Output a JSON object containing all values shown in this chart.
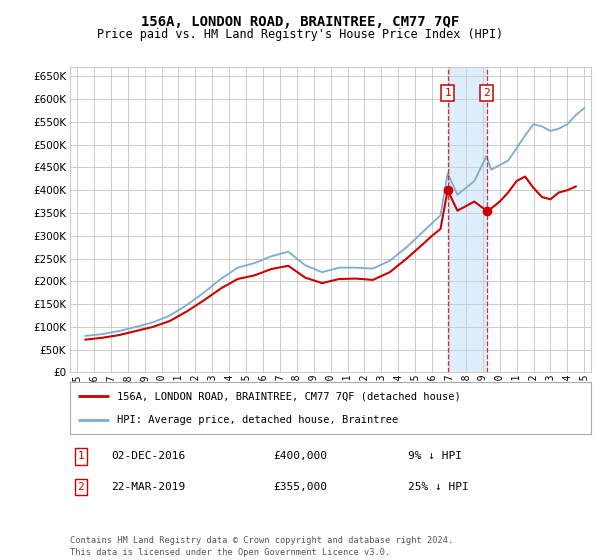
{
  "title": "156A, LONDON ROAD, BRAINTREE, CM77 7QF",
  "subtitle": "Price paid vs. HM Land Registry's House Price Index (HPI)",
  "legend_line1": "156A, LONDON ROAD, BRAINTREE, CM77 7QF (detached house)",
  "legend_line2": "HPI: Average price, detached house, Braintree",
  "transaction1_label": "1",
  "transaction1_date": "02-DEC-2016",
  "transaction1_price": "£400,000",
  "transaction1_hpi": "9% ↓ HPI",
  "transaction1_year": 2016.92,
  "transaction1_value": 400000,
  "transaction2_label": "2",
  "transaction2_date": "22-MAR-2019",
  "transaction2_price": "£355,000",
  "transaction2_hpi": "25% ↓ HPI",
  "transaction2_year": 2019.22,
  "transaction2_value": 355000,
  "footer": "Contains HM Land Registry data © Crown copyright and database right 2024.\nThis data is licensed under the Open Government Licence v3.0.",
  "red_line_color": "#cc0000",
  "blue_line_color": "#7aadcf",
  "bg_color": "#ffffff",
  "grid_color": "#cccccc",
  "highlight_color": "#ddeeff",
  "ylim": [
    0,
    670000
  ],
  "yticks": [
    0,
    50000,
    100000,
    150000,
    200000,
    250000,
    300000,
    350000,
    400000,
    450000,
    500000,
    550000,
    600000,
    650000
  ],
  "hpi_years": [
    1995.5,
    1996.5,
    1997.5,
    1998.5,
    1999.5,
    2000.5,
    2001.5,
    2002.5,
    2003.5,
    2004.5,
    2005.5,
    2006.5,
    2007.5,
    2008.5,
    2009.5,
    2010.5,
    2011.5,
    2012.5,
    2013.5,
    2014.5,
    2015.5,
    2016.5,
    2016.92,
    2017.5,
    2018.5,
    2019.22,
    2019.5,
    2020.5,
    2021.5,
    2022.0,
    2022.5,
    2023.0,
    2023.5,
    2024.0,
    2024.5,
    2025.0
  ],
  "hpi_values": [
    80000,
    84000,
    91000,
    100000,
    110000,
    125000,
    148000,
    175000,
    205000,
    230000,
    240000,
    255000,
    265000,
    235000,
    220000,
    230000,
    230000,
    228000,
    245000,
    275000,
    310000,
    345000,
    437000,
    390000,
    420000,
    475000,
    445000,
    465000,
    520000,
    545000,
    540000,
    530000,
    535000,
    545000,
    565000,
    580000
  ],
  "red_years": [
    1995.5,
    1996.5,
    1997.5,
    1998.5,
    1999.5,
    2000.5,
    2001.5,
    2002.5,
    2003.5,
    2004.5,
    2005.5,
    2006.5,
    2007.5,
    2008.5,
    2009.5,
    2010.5,
    2011.5,
    2012.5,
    2013.5,
    2014.5,
    2015.5,
    2016.0,
    2016.5,
    2016.92,
    2017.5,
    2018.5,
    2019.22,
    2019.5,
    2020.0,
    2020.5,
    2021.0,
    2021.5,
    2022.0,
    2022.5,
    2023.0,
    2023.5,
    2024.0,
    2024.5
  ],
  "red_values": [
    72000,
    76000,
    82000,
    91000,
    100000,
    113000,
    134000,
    158000,
    184000,
    205000,
    213000,
    227000,
    234000,
    208000,
    196000,
    205000,
    206000,
    203000,
    220000,
    250000,
    283000,
    300000,
    315000,
    400000,
    355000,
    375000,
    355000,
    360000,
    375000,
    395000,
    420000,
    430000,
    405000,
    385000,
    380000,
    395000,
    400000,
    408000
  ]
}
